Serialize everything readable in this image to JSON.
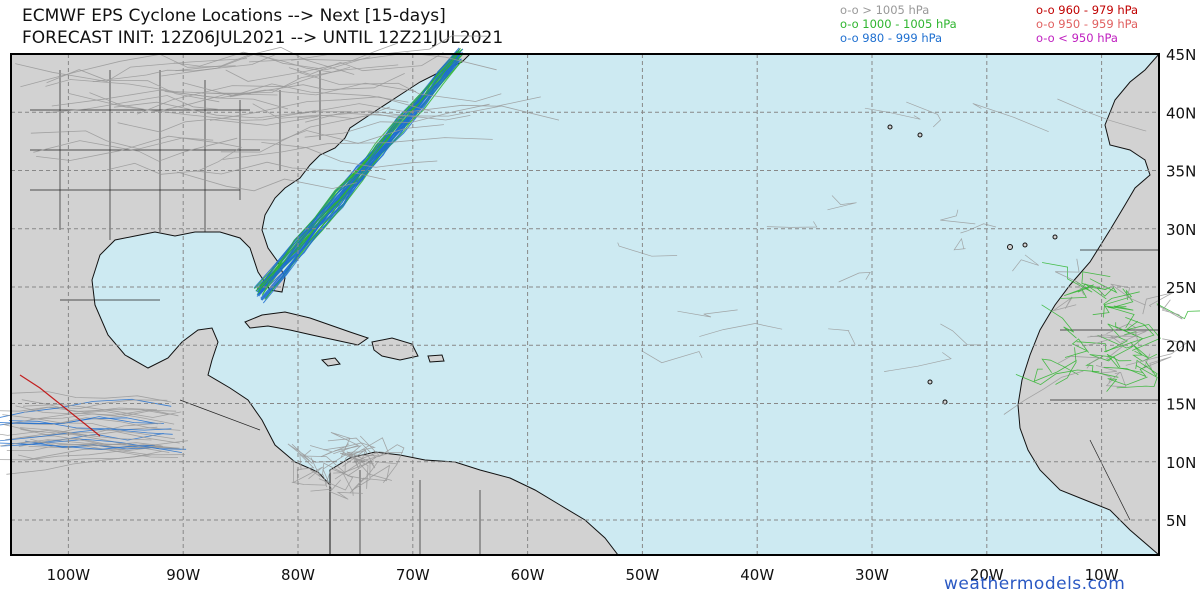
{
  "title": {
    "line1": "ECMWF EPS Cyclone Locations --> Next [15-days]",
    "line2": "FORECAST INIT: 12Z06JUL2021 --> UNTIL 12Z21JUL2021"
  },
  "legend": {
    "left": [
      {
        "label": "o-o > 1005 hPa",
        "color": "#999999"
      },
      {
        "label": "o-o 1000 - 1005 hPa",
        "color": "#2fb52f"
      },
      {
        "label": "o-o 980 - 999 hPa",
        "color": "#1e6fd0"
      }
    ],
    "right": [
      {
        "label": "o-o 960 - 979 hPa",
        "color": "#c00000"
      },
      {
        "label": "o-o 950 - 959 hPa",
        "color": "#e06060"
      },
      {
        "label": "o-o < 950 hPa",
        "color": "#c020c0"
      }
    ]
  },
  "map": {
    "extent": {
      "lon_min": -105,
      "lon_max": -5,
      "lat_min": 2,
      "lat_max": 45
    },
    "ocean_color": "#cdeaf2",
    "land_color": "#d2d2d2",
    "lon_labels": [
      "100W",
      "90W",
      "80W",
      "70W",
      "60W",
      "50W",
      "40W",
      "30W",
      "20W",
      "10W"
    ],
    "lat_labels": [
      "45N",
      "40N",
      "35N",
      "30N",
      "25N",
      "20N",
      "15N",
      "10N",
      "5N"
    ],
    "lon_values": [
      -100,
      -90,
      -80,
      -70,
      -60,
      -50,
      -40,
      -30,
      -20,
      -10
    ],
    "lat_values": [
      45,
      40,
      35,
      30,
      25,
      20,
      15,
      10,
      5
    ]
  },
  "credit": "weathermodels.com"
}
